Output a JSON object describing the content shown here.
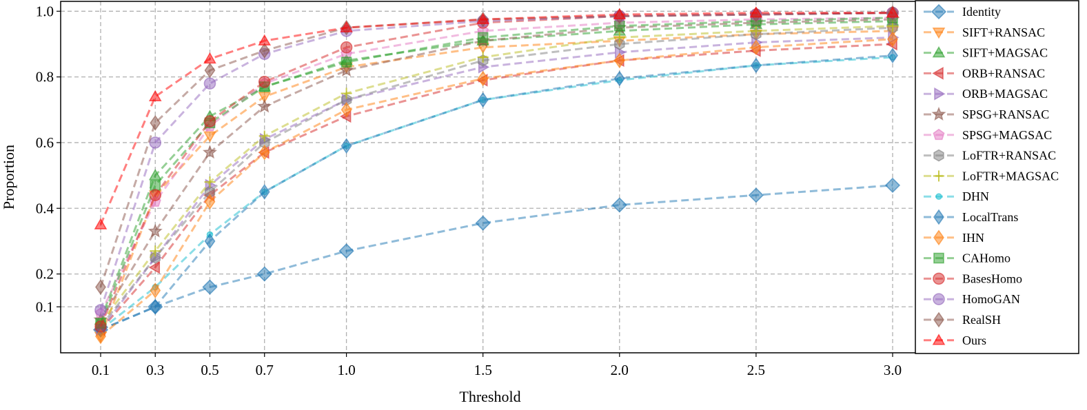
{
  "chart_data": {
    "type": "line",
    "title": "",
    "xlabel": "Threshold",
    "ylabel": "Proportion",
    "x": [
      0.1,
      0.3,
      0.5,
      0.7,
      1.0,
      1.5,
      2.0,
      2.5,
      3.0
    ],
    "x_tick_labels": [
      "0.1",
      "0.3",
      "0.5",
      "0.7",
      "1.0",
      "1.5",
      "2.0",
      "2.5",
      "3.0"
    ],
    "y_ticks": [
      0.1,
      0.2,
      0.4,
      0.6,
      0.8,
      1.0
    ],
    "y_tick_labels": [
      "0.1",
      "0.2",
      "0.4",
      "0.6",
      "0.8",
      "1.0"
    ],
    "ylim": [
      -0.04,
      1.03
    ],
    "grid": true,
    "legend_position": "right",
    "series": [
      {
        "name": "Identity",
        "color": "#1f77b4",
        "marker": "diamond",
        "values": [
          0.03,
          0.1,
          0.16,
          0.2,
          0.27,
          0.355,
          0.41,
          0.44,
          0.47
        ]
      },
      {
        "name": "SIFT+RANSAC",
        "color": "#ff7f0e",
        "marker": "triangle-down",
        "values": [
          0.01,
          0.44,
          0.62,
          0.74,
          0.83,
          0.89,
          0.91,
          0.93,
          0.94
        ]
      },
      {
        "name": "SIFT+MAGSAC",
        "color": "#2ca02c",
        "marker": "triangle-up",
        "values": [
          0.06,
          0.5,
          0.68,
          0.77,
          0.85,
          0.91,
          0.94,
          0.96,
          0.97
        ]
      },
      {
        "name": "ORB+RANSAC",
        "color": "#d62728",
        "marker": "triangle-left",
        "values": [
          0.03,
          0.22,
          0.44,
          0.57,
          0.68,
          0.79,
          0.85,
          0.88,
          0.9
        ]
      },
      {
        "name": "ORB+MAGSAC",
        "color": "#9467bd",
        "marker": "triangle-right",
        "values": [
          0.03,
          0.25,
          0.47,
          0.61,
          0.73,
          0.83,
          0.875,
          0.905,
          0.92
        ]
      },
      {
        "name": "SPSG+RANSAC",
        "color": "#8c564b",
        "marker": "star",
        "values": [
          0.06,
          0.33,
          0.57,
          0.71,
          0.82,
          0.91,
          0.95,
          0.965,
          0.975
        ]
      },
      {
        "name": "SPSG+MAGSAC",
        "color": "#e377c2",
        "marker": "pentagon",
        "values": [
          0.08,
          0.42,
          0.65,
          0.78,
          0.87,
          0.94,
          0.965,
          0.975,
          0.98
        ]
      },
      {
        "name": "LoFTR+RANSAC",
        "color": "#7f7f7f",
        "marker": "hexagon",
        "values": [
          0.04,
          0.25,
          0.45,
          0.6,
          0.73,
          0.85,
          0.9,
          0.93,
          0.95
        ]
      },
      {
        "name": "LoFTR+MAGSAC",
        "color": "#bcbd22",
        "marker": "plus",
        "values": [
          0.05,
          0.27,
          0.48,
          0.62,
          0.75,
          0.86,
          0.92,
          0.94,
          0.955
        ]
      },
      {
        "name": "DHN",
        "color": "#17becf",
        "marker": "circle-small",
        "values": [
          0.03,
          0.16,
          0.32,
          0.45,
          0.59,
          0.73,
          0.79,
          0.835,
          0.86
        ]
      },
      {
        "name": "LocalTrans",
        "color": "#1f77b4",
        "marker": "thin-diamond",
        "values": [
          0.03,
          0.1,
          0.3,
          0.45,
          0.59,
          0.73,
          0.795,
          0.835,
          0.865
        ]
      },
      {
        "name": "IHN",
        "color": "#ff7f0e",
        "marker": "thin-diamond",
        "values": [
          0.01,
          0.15,
          0.42,
          0.57,
          0.7,
          0.795,
          0.85,
          0.89,
          0.915
        ]
      },
      {
        "name": "CAHomo",
        "color": "#2ca02c",
        "marker": "square",
        "values": [
          0.05,
          0.47,
          0.66,
          0.77,
          0.845,
          0.92,
          0.955,
          0.97,
          0.98
        ]
      },
      {
        "name": "BasesHomo",
        "color": "#d62728",
        "marker": "circle",
        "values": [
          0.04,
          0.44,
          0.665,
          0.785,
          0.89,
          0.965,
          0.985,
          0.99,
          0.995
        ]
      },
      {
        "name": "HomoGAN",
        "color": "#9467bd",
        "marker": "circle",
        "values": [
          0.09,
          0.6,
          0.78,
          0.87,
          0.94,
          0.97,
          0.985,
          0.99,
          0.995
        ]
      },
      {
        "name": "RealSH",
        "color": "#8c564b",
        "marker": "thin-diamond",
        "values": [
          0.16,
          0.66,
          0.82,
          0.88,
          0.95,
          0.975,
          0.985,
          0.99,
          0.995
        ]
      },
      {
        "name": "Ours",
        "color": "#ff0000",
        "marker": "triangle-up",
        "values": [
          0.35,
          0.74,
          0.855,
          0.91,
          0.95,
          0.975,
          0.99,
          0.995,
          0.995
        ]
      }
    ]
  }
}
